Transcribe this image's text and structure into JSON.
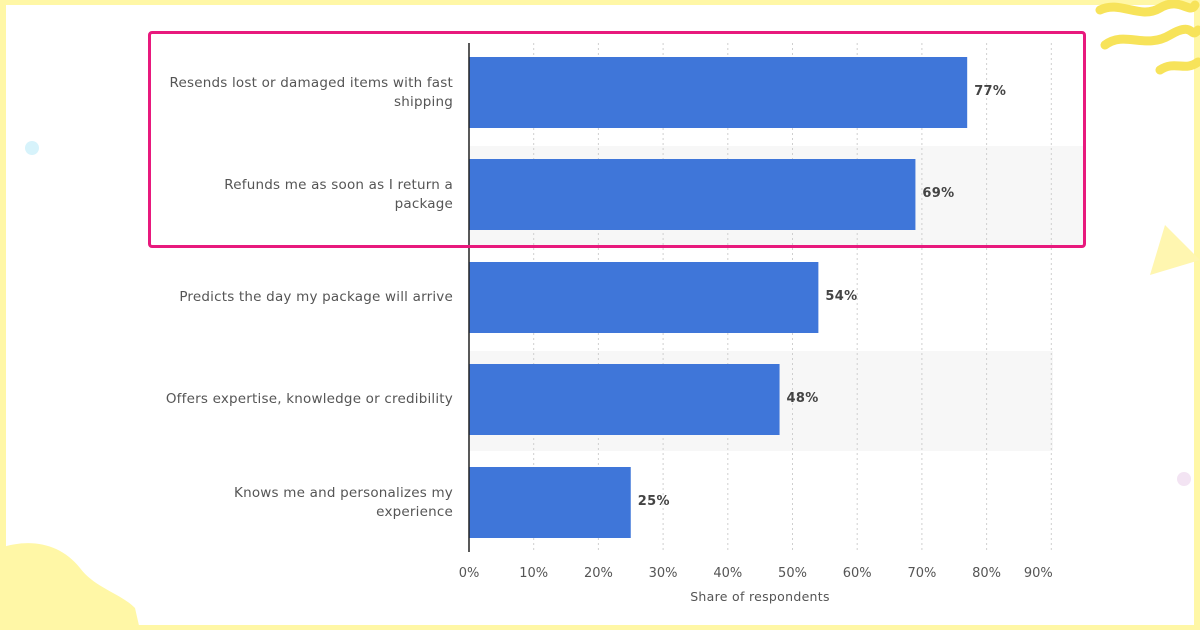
{
  "chart_data": {
    "type": "bar",
    "orientation": "horizontal",
    "categories": [
      [
        "Resends lost or damaged items with fast",
        "shipping"
      ],
      [
        "Refunds me as soon as I return a",
        "package"
      ],
      [
        "Predicts the day my package will arrive"
      ],
      [
        "Offers expertise, knowledge or credibility"
      ],
      [
        "Knows me and personalizes my",
        "experience"
      ]
    ],
    "values": [
      77,
      69,
      54,
      48,
      25
    ],
    "value_labels": [
      "77%",
      "69%",
      "54%",
      "48%",
      "25%"
    ],
    "xlim": [
      0,
      90
    ],
    "xticks": [
      0,
      10,
      20,
      30,
      40,
      50,
      60,
      70,
      80,
      90
    ],
    "xtick_labels": [
      "0%",
      "10%",
      "20%",
      "30%",
      "40%",
      "50%",
      "60%",
      "70%",
      "80%",
      "90%"
    ],
    "xlabel": "Share of respondents",
    "bar_color": "#3f76d9",
    "grid": "vertical-dotted",
    "highlight": {
      "categories_index": [
        0,
        1
      ],
      "color": "#e8197d"
    }
  },
  "decor": {
    "background": "#fff7a6"
  }
}
